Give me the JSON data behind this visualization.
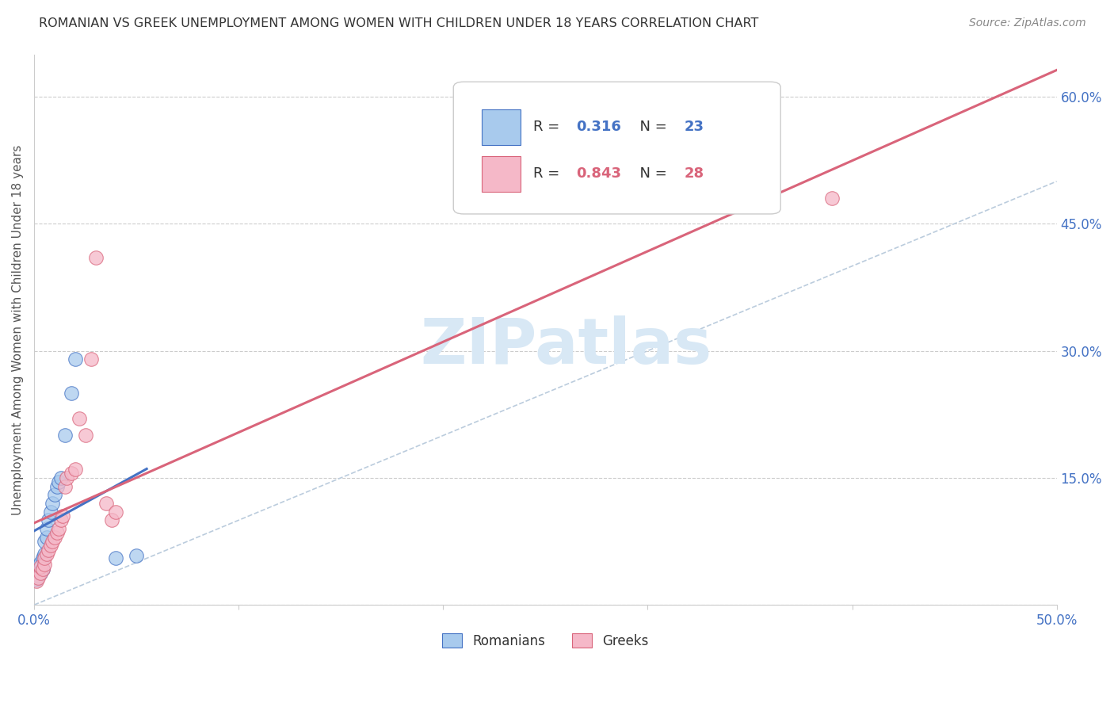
{
  "title": "ROMANIAN VS GREEK UNEMPLOYMENT AMONG WOMEN WITH CHILDREN UNDER 18 YEARS CORRELATION CHART",
  "source": "Source: ZipAtlas.com",
  "ylabel": "Unemployment Among Women with Children Under 18 years",
  "xlim": [
    0.0,
    0.5
  ],
  "ylim": [
    0.0,
    0.65
  ],
  "xticks": [
    0.0,
    0.1,
    0.2,
    0.3,
    0.4,
    0.5
  ],
  "yticks": [
    0.0,
    0.15,
    0.3,
    0.45,
    0.6
  ],
  "xtick_labels": [
    "0.0%",
    "",
    "",
    "",
    "",
    "50.0%"
  ],
  "ytick_labels_right": [
    "",
    "15.0%",
    "30.0%",
    "45.0%",
    "60.0%"
  ],
  "romanians_x": [
    0.001,
    0.002,
    0.002,
    0.003,
    0.003,
    0.004,
    0.004,
    0.005,
    0.005,
    0.006,
    0.006,
    0.007,
    0.008,
    0.009,
    0.01,
    0.011,
    0.012,
    0.013,
    0.015,
    0.018,
    0.02,
    0.04,
    0.05
  ],
  "romanians_y": [
    0.03,
    0.035,
    0.045,
    0.038,
    0.05,
    0.042,
    0.055,
    0.06,
    0.075,
    0.08,
    0.09,
    0.1,
    0.11,
    0.12,
    0.13,
    0.14,
    0.145,
    0.15,
    0.2,
    0.25,
    0.29,
    0.055,
    0.058
  ],
  "greeks_x": [
    0.001,
    0.002,
    0.003,
    0.003,
    0.004,
    0.005,
    0.005,
    0.006,
    0.007,
    0.008,
    0.009,
    0.01,
    0.011,
    0.012,
    0.013,
    0.014,
    0.015,
    0.016,
    0.018,
    0.02,
    0.022,
    0.025,
    0.028,
    0.03,
    0.035,
    0.038,
    0.04,
    0.39
  ],
  "greeks_y": [
    0.028,
    0.032,
    0.038,
    0.045,
    0.042,
    0.048,
    0.055,
    0.06,
    0.065,
    0.07,
    0.075,
    0.08,
    0.085,
    0.09,
    0.1,
    0.105,
    0.14,
    0.15,
    0.155,
    0.16,
    0.22,
    0.2,
    0.29,
    0.41,
    0.12,
    0.1,
    0.11,
    0.48
  ],
  "r_romanian": 0.316,
  "n_romanian": 23,
  "r_greek": 0.843,
  "n_greek": 28,
  "color_romanian": "#A8CAED",
  "color_greek": "#F5B8C8",
  "line_color_romanian": "#4472C4",
  "line_color_greek": "#D9647A",
  "diagonal_color": "#BBCCDD",
  "background_color": "#FFFFFF",
  "grid_color": "#CCCCCC",
  "watermark": "ZIPatlas",
  "watermark_color": "#D8E8F5",
  "title_color": "#333333",
  "source_color": "#888888",
  "tick_color": "#4472C4",
  "ylabel_color": "#555555"
}
